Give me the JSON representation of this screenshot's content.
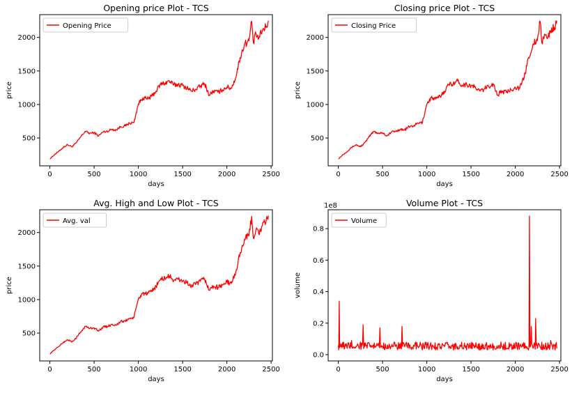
{
  "chart_data": [
    {
      "type": "line",
      "title": "Opening price Plot - TCS",
      "xlabel": "days",
      "ylabel": "price",
      "xlim": [
        -115,
        2515
      ],
      "ylim": [
        85,
        2340
      ],
      "xticks": [
        0,
        500,
        1000,
        1500,
        2000,
        2500
      ],
      "yticks": [
        500,
        1000,
        1500,
        2000
      ],
      "legend_position": "upper left",
      "grid": false,
      "series": [
        {
          "name": "Opening Price",
          "color": "#ff0000",
          "x": [
            0,
            50,
            100,
            150,
            200,
            250,
            300,
            350,
            400,
            450,
            500,
            550,
            600,
            650,
            700,
            750,
            800,
            850,
            900,
            950,
            1000,
            1050,
            1100,
            1150,
            1200,
            1250,
            1300,
            1350,
            1400,
            1450,
            1500,
            1550,
            1600,
            1650,
            1700,
            1750,
            1800,
            1850,
            1900,
            1950,
            2000,
            2050,
            2100,
            2150,
            2200,
            2250,
            2280,
            2300,
            2330,
            2360,
            2400,
            2440,
            2470
          ],
          "values": [
            190,
            250,
            300,
            360,
            400,
            370,
            430,
            520,
            600,
            570,
            580,
            530,
            590,
            600,
            630,
            620,
            670,
            680,
            720,
            730,
            1010,
            1100,
            1080,
            1120,
            1200,
            1300,
            1320,
            1350,
            1290,
            1300,
            1280,
            1250,
            1200,
            1230,
            1270,
            1310,
            1140,
            1200,
            1180,
            1220,
            1260,
            1240,
            1400,
            1700,
            1900,
            1950,
            2240,
            1920,
            2050,
            1980,
            2100,
            2150,
            2250
          ]
        }
      ]
    },
    {
      "type": "line",
      "title": "Closing price Plot - TCS",
      "xlabel": "days",
      "ylabel": "price",
      "xlim": [
        -115,
        2515
      ],
      "ylim": [
        85,
        2340
      ],
      "xticks": [
        0,
        500,
        1000,
        1500,
        2000,
        2500
      ],
      "yticks": [
        500,
        1000,
        1500,
        2000
      ],
      "legend_position": "upper left",
      "grid": false,
      "series": [
        {
          "name": "Closing Price",
          "color": "#ff0000",
          "x": [
            0,
            50,
            100,
            150,
            200,
            250,
            300,
            350,
            400,
            450,
            500,
            550,
            600,
            650,
            700,
            750,
            800,
            850,
            900,
            950,
            1000,
            1050,
            1100,
            1150,
            1200,
            1250,
            1300,
            1350,
            1400,
            1450,
            1500,
            1550,
            1600,
            1650,
            1700,
            1750,
            1800,
            1850,
            1900,
            1950,
            2000,
            2050,
            2100,
            2150,
            2200,
            2250,
            2280,
            2300,
            2330,
            2360,
            2400,
            2440,
            2470
          ],
          "values": [
            190,
            250,
            300,
            360,
            400,
            370,
            430,
            520,
            600,
            570,
            580,
            530,
            590,
            600,
            630,
            620,
            670,
            680,
            720,
            730,
            1010,
            1100,
            1080,
            1120,
            1200,
            1300,
            1320,
            1350,
            1290,
            1300,
            1280,
            1250,
            1200,
            1230,
            1270,
            1310,
            1140,
            1200,
            1180,
            1220,
            1260,
            1240,
            1400,
            1700,
            1900,
            1950,
            2240,
            1920,
            2050,
            1980,
            2100,
            2150,
            2250
          ]
        }
      ]
    },
    {
      "type": "line",
      "title": "Avg. High and Low Plot - TCS",
      "xlabel": "days",
      "ylabel": "price",
      "xlim": [
        -115,
        2515
      ],
      "ylim": [
        85,
        2340
      ],
      "xticks": [
        0,
        500,
        1000,
        1500,
        2000,
        2500
      ],
      "yticks": [
        500,
        1000,
        1500,
        2000
      ],
      "legend_position": "upper left",
      "grid": false,
      "series": [
        {
          "name": "Avg. val",
          "color": "#ff0000",
          "x": [
            0,
            50,
            100,
            150,
            200,
            250,
            300,
            350,
            400,
            450,
            500,
            550,
            600,
            650,
            700,
            750,
            800,
            850,
            900,
            950,
            1000,
            1050,
            1100,
            1150,
            1200,
            1250,
            1300,
            1350,
            1400,
            1450,
            1500,
            1550,
            1600,
            1650,
            1700,
            1750,
            1800,
            1850,
            1900,
            1950,
            2000,
            2050,
            2100,
            2150,
            2200,
            2250,
            2280,
            2300,
            2330,
            2360,
            2400,
            2440,
            2470
          ],
          "values": [
            190,
            250,
            300,
            360,
            400,
            370,
            430,
            520,
            600,
            570,
            580,
            530,
            590,
            600,
            630,
            620,
            670,
            680,
            720,
            730,
            1010,
            1100,
            1080,
            1120,
            1200,
            1300,
            1320,
            1350,
            1290,
            1300,
            1280,
            1250,
            1200,
            1230,
            1270,
            1310,
            1140,
            1200,
            1180,
            1220,
            1260,
            1240,
            1400,
            1700,
            1900,
            1950,
            2240,
            1920,
            2050,
            1980,
            2100,
            2150,
            2250
          ]
        }
      ]
    },
    {
      "type": "line",
      "title": "Volume Plot - TCS",
      "xlabel": "days",
      "ylabel": "volume",
      "offset_text": "1e8",
      "xlim": [
        -115,
        2515
      ],
      "ylim": [
        -0.04,
        0.92
      ],
      "xticks": [
        0,
        500,
        1000,
        1500,
        2000,
        2500
      ],
      "yticks": [
        0.0,
        0.2,
        0.4,
        0.6,
        0.8
      ],
      "ytick_labels": [
        "0.0",
        "0.2",
        "0.4",
        "0.6",
        "0.8"
      ],
      "legend_position": "upper left",
      "grid": false,
      "series": [
        {
          "name": "Volume",
          "color": "#ff0000",
          "x": [
            0,
            10,
            20,
            30,
            60,
            100,
            150,
            200,
            250,
            280,
            300,
            350,
            400,
            450,
            470,
            500,
            550,
            600,
            650,
            700,
            720,
            750,
            800,
            850,
            900,
            950,
            1000,
            1050,
            1100,
            1150,
            1200,
            1250,
            1300,
            1350,
            1400,
            1450,
            1500,
            1550,
            1600,
            1650,
            1700,
            1750,
            1800,
            1850,
            1900,
            1950,
            2000,
            2050,
            2100,
            2130,
            2150,
            2160,
            2170,
            2180,
            2200,
            2220,
            2230,
            2250,
            2300,
            2350,
            2400,
            2450,
            2470
          ],
          "values": [
            0.06,
            0.34,
            0.07,
            0.05,
            0.08,
            0.04,
            0.09,
            0.05,
            0.08,
            0.19,
            0.05,
            0.07,
            0.04,
            0.06,
            0.17,
            0.05,
            0.04,
            0.05,
            0.06,
            0.04,
            0.18,
            0.05,
            0.04,
            0.06,
            0.05,
            0.03,
            0.04,
            0.05,
            0.03,
            0.04,
            0.05,
            0.04,
            0.03,
            0.05,
            0.04,
            0.03,
            0.04,
            0.05,
            0.03,
            0.04,
            0.05,
            0.03,
            0.04,
            0.05,
            0.04,
            0.06,
            0.04,
            0.05,
            0.04,
            0.05,
            0.03,
            0.88,
            0.05,
            0.18,
            0.04,
            0.06,
            0.23,
            0.04,
            0.08,
            0.03,
            0.09,
            0.03,
            0.04
          ]
        }
      ]
    }
  ]
}
